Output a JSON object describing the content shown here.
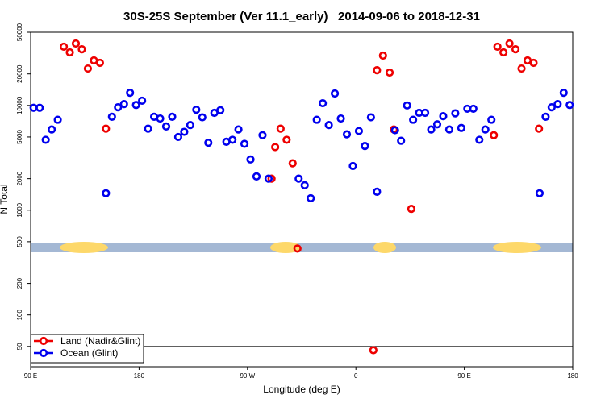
{
  "chart_data": {
    "type": "scatter",
    "title": "30S-25S September (Ver 11.1_early)   2014-09-06 to 2018-12-31",
    "x_label": "Longitude (deg E)",
    "y_label": "N Total",
    "log_y": true,
    "xlim": [
      90,
      540
    ],
    "ylim": [
      32,
      50000
    ],
    "xticks": [
      {
        "value": 90,
        "label": "90 E"
      },
      180,
      {
        "value": 270,
        "label": "90 W"
      },
      {
        "value": 360,
        "label": "0"
      },
      {
        "value": 450,
        "label": "90 E"
      },
      {
        "value": 540,
        "label": "180"
      }
    ],
    "yticks": [
      50,
      100,
      200,
      500,
      1000,
      2000,
      5000,
      10000,
      20000,
      50000
    ],
    "hline": 50,
    "legend": "bottom-left",
    "series": [
      {
        "name": "Land (Nadir&Glint)",
        "color": "#ee0000",
        "x": [
          117.5,
          122.5,
          127.5,
          132.5,
          137.5,
          142.5,
          147.5,
          152.5,
          290,
          293,
          297.5,
          302.5,
          307.5,
          311.5,
          374.5,
          377.5,
          382.5,
          388,
          391.5,
          406,
          474.5,
          477.5,
          482.5,
          487.5,
          492.5,
          497.5,
          502.5,
          507.5,
          512
        ],
        "values": [
          36400,
          32100,
          39000,
          34400,
          22500,
          26900,
          25500,
          6000,
          2000,
          4000,
          6000,
          4700,
          2800,
          430,
          46,
          21700,
          29900,
          20600,
          5900,
          1030,
          5200,
          36400,
          32100,
          39000,
          34400,
          22500,
          26900,
          25500,
          6000
        ]
      },
      {
        "name": "Ocean (Glint)",
        "color": "#0000ee",
        "x": [
          92.5,
          97.5,
          102.5,
          107.5,
          112.5,
          152.5,
          157.5,
          162.5,
          167.5,
          172.5,
          177.5,
          182.5,
          187.5,
          192.5,
          197.5,
          202.5,
          207.5,
          212.5,
          217.5,
          222.5,
          227.5,
          232.5,
          237.5,
          242.5,
          247.5,
          252.5,
          257.5,
          262.5,
          267.5,
          272.5,
          277.5,
          282.5,
          287.5,
          312.5,
          317.5,
          322.5,
          327.5,
          332.5,
          337.5,
          342.5,
          347.5,
          352.5,
          357.5,
          362.5,
          367.5,
          372.5,
          377.5,
          392.5,
          397.5,
          402.5,
          407.5,
          412.5,
          417.5,
          422.5,
          427.5,
          432.5,
          437.5,
          442.5,
          447.5,
          452.5,
          457.5,
          462.5,
          467.5,
          472.5,
          512.5,
          517.5,
          522.5,
          527.5,
          532.5,
          537.5
        ],
        "values": [
          9500,
          9500,
          4700,
          5900,
          7300,
          1450,
          7800,
          9600,
          10300,
          13200,
          10100,
          11100,
          6000,
          7800,
          7500,
          6300,
          7800,
          5000,
          5600,
          6500,
          9100,
          7700,
          4400,
          8500,
          9000,
          4500,
          4700,
          5900,
          4300,
          3050,
          2100,
          5200,
          2000,
          2000,
          1730,
          1300,
          7300,
          10500,
          6500,
          13000,
          7500,
          5300,
          2640,
          5700,
          4100,
          7700,
          1500,
          5800,
          4600,
          10000,
          7300,
          8500,
          8500,
          5900,
          6600,
          7900,
          5900,
          8400,
          6100,
          9300,
          9300,
          4700,
          5900,
          7300,
          1450,
          7800,
          9600,
          10300,
          13200,
          10100
        ]
      }
    ]
  }
}
